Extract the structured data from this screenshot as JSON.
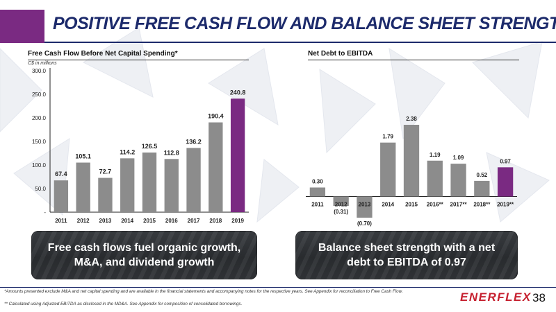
{
  "header": {
    "title": "POSITIVE FREE CASH FLOW AND BALANCE SHEET STRENGTH",
    "accent_color": "#7a2a82",
    "title_color": "#1c2a6b"
  },
  "charts": {
    "fcf": {
      "section_title": "Free Cash Flow Before Net Capital Spending*",
      "units": "C$ in millions"
    },
    "debt": {
      "section_title": "Net Debt to EBITDA"
    }
  },
  "chart_data": [
    {
      "type": "bar",
      "title": "Free Cash Flow Before Net Capital Spending*",
      "units": "C$ in millions",
      "categories": [
        "2011",
        "2012",
        "2013",
        "2014",
        "2015",
        "2016",
        "2017",
        "2018",
        "2019"
      ],
      "values": [
        67.4,
        105.1,
        72.7,
        114.2,
        126.5,
        112.8,
        136.2,
        190.4,
        240.8
      ],
      "labels": [
        "67.4",
        "105.1",
        "72.7",
        "114.2",
        "126.5",
        "112.8",
        "136.2",
        "190.4",
        "240.8"
      ],
      "highlight_index": 8,
      "ylim": [
        0,
        300
      ],
      "yticks": [
        "-",
        "50.0",
        "100.0",
        "150.0",
        "200.0",
        "250.0",
        "300.0"
      ],
      "ytick_values": [
        0,
        50,
        100,
        150,
        200,
        250,
        300
      ],
      "bar_color": "#8c8c8c",
      "highlight_color": "#7a2a82"
    },
    {
      "type": "bar",
      "title": "Net Debt to EBITDA",
      "categories": [
        "2011",
        "2012",
        "2013",
        "2014",
        "2015",
        "2016**",
        "2017**",
        "2018**",
        "2019**"
      ],
      "values": [
        0.3,
        -0.31,
        -0.7,
        1.79,
        2.38,
        1.19,
        1.09,
        0.52,
        0.97
      ],
      "labels": [
        "0.30",
        "(0.31)",
        "(0.70)",
        "1.79",
        "2.38",
        "1.19",
        "1.09",
        "0.52",
        "0.97"
      ],
      "highlight_index": 8,
      "ylim": [
        -0.8,
        2.7
      ],
      "bar_color": "#8c8c8c",
      "highlight_color": "#7a2a82"
    }
  ],
  "callouts": {
    "left": "Free cash flows fuel organic growth, M&A, and dividend growth",
    "right": "Balance sheet strength with a net debt to EBITDA of 0.97"
  },
  "footer": {
    "note1": "*Amounts presented exclude M&A and net capital spending and are available in the financial statements and accompanying notes for the respective years. See Appendix for reconciliation to Free Cash Flow.",
    "note2": "** Calculated using Adjusted EBITDA as disclosed in the MD&A. See Appendix for composition of consolidated borrowings.",
    "logo": "ENERFLEX",
    "logo_color": "#c6202f",
    "page_number": "38"
  }
}
